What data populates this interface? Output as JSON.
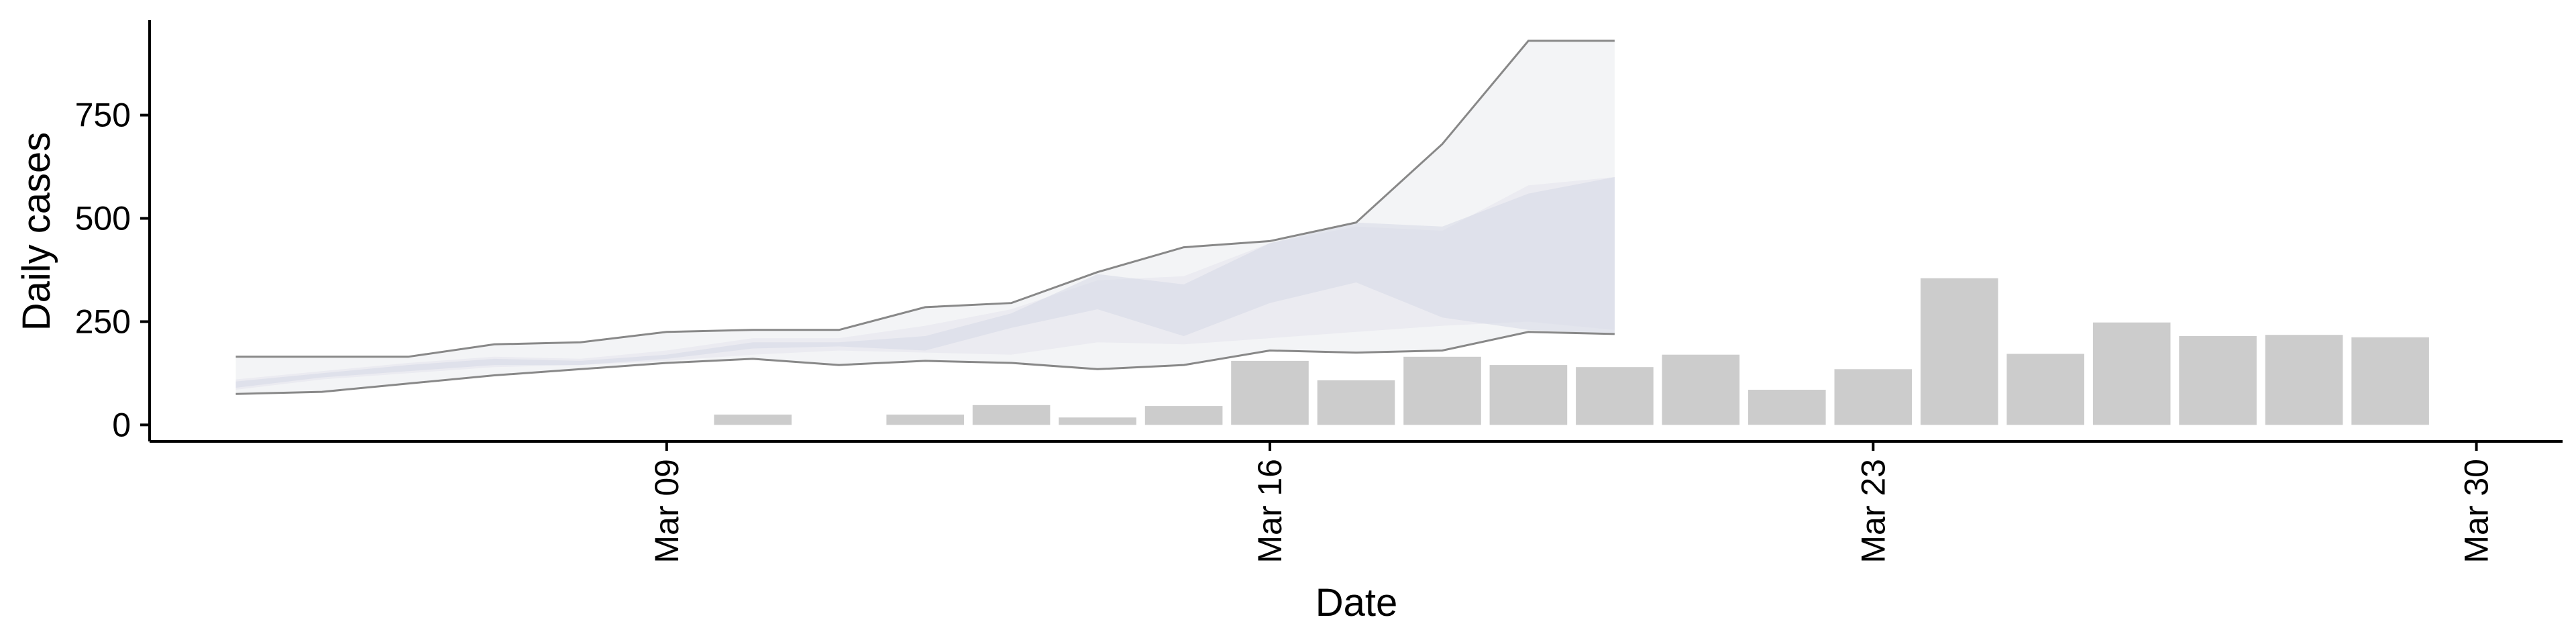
{
  "chart_data": {
    "type": "bar",
    "xlabel": "Date",
    "ylabel": "Daily cases",
    "x_ticks": [
      "Mar 09",
      "Mar 16",
      "Mar 23",
      "Mar 30"
    ],
    "y_ticks": [
      0,
      250,
      500,
      750
    ],
    "ylim": [
      -40,
      980
    ],
    "xlim": [
      "2020-03-03",
      "2020-03-31"
    ],
    "grid": false,
    "colors": {
      "bars": "#cccccc",
      "band_outer": "#f1f2f5",
      "band_middle": "#e3e4ec",
      "band_inner": "#d6d9e6",
      "line": "#888888"
    },
    "reported_cases": [
      {
        "date": "2020-03-10",
        "value": 25
      },
      {
        "date": "2020-03-12",
        "value": 25
      },
      {
        "date": "2020-03-13",
        "value": 48
      },
      {
        "date": "2020-03-14",
        "value": 18
      },
      {
        "date": "2020-03-15",
        "value": 46
      },
      {
        "date": "2020-03-16",
        "value": 155
      },
      {
        "date": "2020-03-17",
        "value": 108
      },
      {
        "date": "2020-03-18",
        "value": 165
      },
      {
        "date": "2020-03-19",
        "value": 145
      },
      {
        "date": "2020-03-20",
        "value": 140
      },
      {
        "date": "2020-03-21",
        "value": 170
      },
      {
        "date": "2020-03-22",
        "value": 85
      },
      {
        "date": "2020-03-23",
        "value": 135
      },
      {
        "date": "2020-03-24",
        "value": 355
      },
      {
        "date": "2020-03-25",
        "value": 172
      },
      {
        "date": "2020-03-26",
        "value": 248
      },
      {
        "date": "2020-03-27",
        "value": 215
      },
      {
        "date": "2020-03-28",
        "value": 218
      },
      {
        "date": "2020-03-29",
        "value": 212
      }
    ],
    "estimate_bands": {
      "dates": [
        "2020-03-04",
        "2020-03-05",
        "2020-03-06",
        "2020-03-07",
        "2020-03-08",
        "2020-03-09",
        "2020-03-10",
        "2020-03-11",
        "2020-03-12",
        "2020-03-13",
        "2020-03-14",
        "2020-03-15",
        "2020-03-16",
        "2020-03-17",
        "2020-03-18",
        "2020-03-19",
        "2020-03-20"
      ],
      "outer_lower": [
        75,
        80,
        100,
        120,
        135,
        150,
        160,
        145,
        155,
        150,
        135,
        145,
        180,
        175,
        180,
        225,
        220
      ],
      "outer_upper": [
        165,
        165,
        165,
        195,
        200,
        225,
        230,
        230,
        285,
        295,
        370,
        430,
        445,
        490,
        680,
        930,
        930
      ],
      "middle_lower": [
        85,
        110,
        125,
        140,
        145,
        155,
        170,
        180,
        175,
        170,
        200,
        195,
        210,
        225,
        240,
        250,
        230
      ],
      "middle_upper": [
        110,
        130,
        150,
        165,
        160,
        180,
        210,
        210,
        240,
        280,
        350,
        360,
        440,
        480,
        470,
        580,
        600
      ],
      "inner_lower": [
        90,
        115,
        130,
        145,
        145,
        160,
        185,
        190,
        180,
        235,
        280,
        215,
        295,
        345,
        260,
        230,
        220
      ],
      "inner_upper": [
        105,
        125,
        145,
        160,
        155,
        170,
        200,
        200,
        215,
        270,
        365,
        340,
        440,
        490,
        480,
        560,
        600
      ]
    }
  }
}
